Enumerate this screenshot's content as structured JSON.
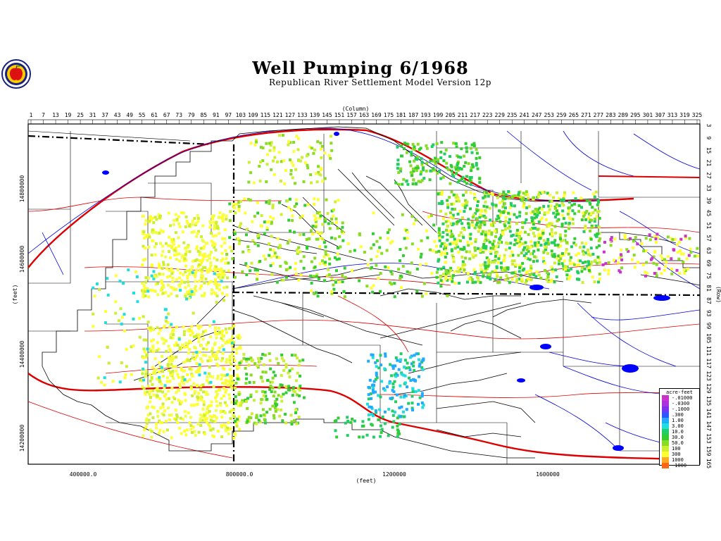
{
  "title": "Well Pumping   6/1968",
  "subtitle": "Republican River Settlement Model Version 12p",
  "logo_icon": "apple-logo-icon",
  "axes": {
    "top_label": "(Column)",
    "bottom_label": "(feet)",
    "left_label": "(feet)",
    "right_label": "(Row)",
    "column_ticks": [
      "1",
      "7",
      "13",
      "19",
      "25",
      "31",
      "37",
      "43",
      "49",
      "55",
      "61",
      "67",
      "73",
      "79",
      "85",
      "91",
      "97",
      "103",
      "109",
      "115",
      "121",
      "127",
      "133",
      "139",
      "145",
      "151",
      "157",
      "163",
      "169",
      "175",
      "181",
      "187",
      "193",
      "199",
      "205",
      "211",
      "217",
      "223",
      "229",
      "235",
      "241",
      "247",
      "253",
      "259",
      "265",
      "271",
      "277",
      "283",
      "289",
      "295",
      "301",
      "307",
      "313",
      "319",
      "325"
    ],
    "row_ticks": [
      "3",
      "9",
      "15",
      "21",
      "27",
      "33",
      "39",
      "45",
      "51",
      "57",
      "63",
      "69",
      "75",
      "81",
      "87",
      "93",
      "99",
      "105",
      "111",
      "117",
      "123",
      "129",
      "135",
      "141",
      "147",
      "153",
      "159",
      "165"
    ],
    "x_ticks": [
      "400000.0",
      "800000.0",
      "1200000",
      "1600000"
    ],
    "y_ticks": [
      "14800000",
      "14600000",
      "14400000",
      "14200000"
    ]
  },
  "legend": {
    "title": "acre-feet",
    "entries": [
      {
        "label": "-.01000",
        "color": "#cc33cc"
      },
      {
        "label": "-.0300",
        "color": "#aa33dd"
      },
      {
        "label": "-.1000",
        "color": "#7733ee"
      },
      {
        "label": ".300",
        "color": "#3355ff"
      },
      {
        "label": "1.00",
        "color": "#22aaff"
      },
      {
        "label": "3.00",
        "color": "#22dddd"
      },
      {
        "label": "10.0",
        "color": "#22cc66"
      },
      {
        "label": "30.0",
        "color": "#33cc33"
      },
      {
        "label": "50.0",
        "color": "#88dd22"
      },
      {
        "label": "100",
        "color": "#ccee33"
      },
      {
        "label": "300",
        "color": "#ffff33"
      },
      {
        "label": "1000",
        "color": "#ffaa22"
      },
      {
        "label": "-1000",
        "color": "#ff6611"
      }
    ]
  },
  "colors": {
    "river": "#0000dd",
    "highway": "#dd0000",
    "boundary": "#000000"
  }
}
